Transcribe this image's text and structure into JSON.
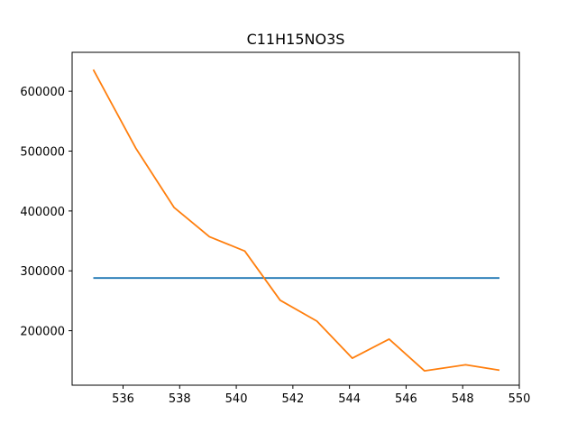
{
  "chart_data": {
    "type": "line",
    "title": "C11H15NO3S",
    "xlabel": "",
    "ylabel": "",
    "xlim": [
      534.2,
      550.0
    ],
    "ylim": [
      109000,
      665000
    ],
    "grid": false,
    "x_ticks": [
      536,
      538,
      540,
      542,
      544,
      546,
      548,
      550
    ],
    "y_ticks": [
      200000,
      300000,
      400000,
      500000,
      600000
    ],
    "series": [
      {
        "color": "#1f77b4",
        "x": [
          534.95,
          549.3
        ],
        "y": [
          288000,
          288000
        ]
      },
      {
        "color": "#ff7f0e",
        "x": [
          534.95,
          536.45,
          537.8,
          539.05,
          540.3,
          541.55,
          542.85,
          544.1,
          545.4,
          546.65,
          548.1,
          549.3
        ],
        "y": [
          636000,
          505000,
          406000,
          357000,
          333000,
          251000,
          216000,
          154000,
          186000,
          133000,
          143000,
          134000
        ]
      }
    ]
  }
}
